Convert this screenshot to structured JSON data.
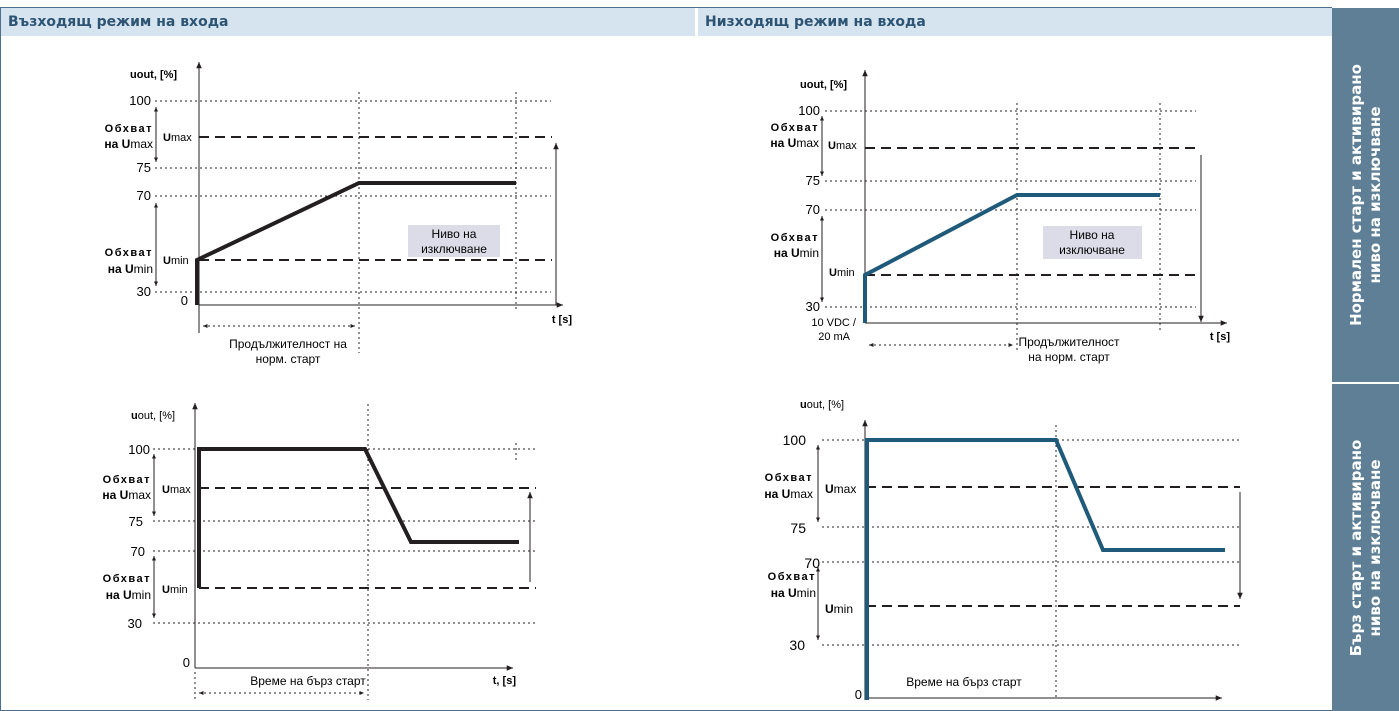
{
  "headers": {
    "left": "Възходящ режим на входа",
    "right": "Низходящ режим на входа"
  },
  "side_labels": {
    "top": "Нормален старт и активирано\nниво на изключване",
    "bottom": "Бърз старт и активирано\nниво на изключване"
  },
  "colors": {
    "left_curve": "#231f20",
    "right_curve": "#1f5a7a",
    "header_bg": "#d5e4ef",
    "side_bg": "#5e7f96"
  },
  "charts": {
    "tl": {
      "y_title_main": "u",
      "y_title_sub": "out, [%]",
      "x_title": "t [s]",
      "ticks": {
        "t100": "100",
        "t75": "75",
        "t70": "70",
        "t30": "30",
        "t0": "0"
      },
      "range_umax": {
        "line1": "Обхват",
        "line2_pre": "на ",
        "line2_bold": "U",
        "line2_post": "max"
      },
      "range_umin": {
        "line1": "Обхват",
        "line2_pre": "на ",
        "line2_bold": "U",
        "line2_post": "min"
      },
      "umax_label": {
        "bold": "U",
        "rest": "max"
      },
      "umin_label": {
        "bold": "U",
        "rest": "min"
      },
      "cutoff_label": {
        "line1": "Ниво на",
        "line2": "изключване"
      },
      "duration_label": {
        "line1": "Продължителност на",
        "line2": "норм. старт"
      }
    },
    "tr": {
      "y_title_main": "u",
      "y_title_sub": "out, [%]",
      "x_title": "t [s]",
      "ticks": {
        "t100": "100",
        "t75": "75",
        "t70": "70",
        "t30": "30",
        "t0_line1": "10 VDC /",
        "t0_line2": "20 mA"
      },
      "range_umax": {
        "line1": "Обхват",
        "line2_pre": "на ",
        "line2_bold": "U",
        "line2_post": "max"
      },
      "range_umin": {
        "line1": "Обхват",
        "line2_pre": "на ",
        "line2_bold": "U",
        "line2_post": "min"
      },
      "umax_label": {
        "bold": "U",
        "rest": "max"
      },
      "umin_label": {
        "bold": "U",
        "rest": "min"
      },
      "cutoff_label": {
        "line1": "Ниво на",
        "line2": "изключване"
      },
      "duration_label": {
        "line1": "Продължителност",
        "line2": "на норм. старт"
      }
    },
    "bl": {
      "y_title_main": "u",
      "y_title_sub": "out, [%]",
      "x_title": "t, [s]",
      "ticks": {
        "t100": "100",
        "t75": "75",
        "t70": "70",
        "t30": "30",
        "t0": "0"
      },
      "range_umax": {
        "line1": "Обхват",
        "line2_pre": "на ",
        "line2_bold": "U",
        "line2_post": "max"
      },
      "range_umin": {
        "line1": "Обхват",
        "line2_pre": "на ",
        "line2_bold": "U",
        "line2_post": "min"
      },
      "umax_label": {
        "bold": "U",
        "rest": "max"
      },
      "umin_label": {
        "bold": "U",
        "rest": "min"
      },
      "duration_label": "Време на бърз старт"
    },
    "br": {
      "y_title_main": "u",
      "y_title_sub": "out, [%]",
      "ticks": {
        "t100": "100",
        "t75": "75",
        "t70": "70",
        "t30": "30",
        "t0": "0"
      },
      "range_umax": {
        "line1": "Обхват",
        "line2_pre": "на ",
        "line2_bold": "U",
        "line2_post": "max"
      },
      "range_umin": {
        "line1": "Обхват",
        "line2_pre": "на ",
        "line2_bold": "U",
        "line2_post": "min"
      },
      "umax_label": {
        "bold": "U",
        "rest": "max"
      },
      "umin_label": {
        "bold": "U",
        "rest": "min"
      },
      "duration_label": "Време на бърз старт"
    }
  }
}
